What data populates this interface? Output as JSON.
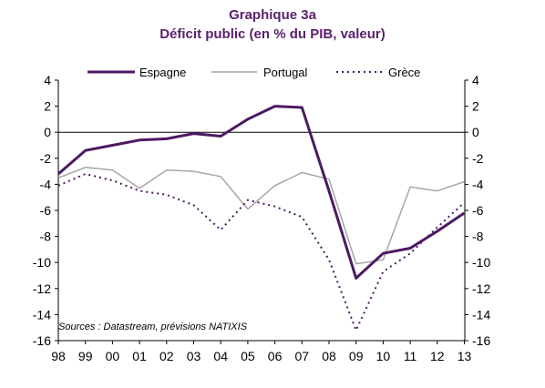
{
  "chart_data": {
    "type": "line",
    "title": "Graphique 3a",
    "subtitle": "Déficit public (en % du PIB, valeur)",
    "source": "Sources : Datastream,  prévisions NATIXIS",
    "x": [
      "98",
      "99",
      "00",
      "01",
      "02",
      "03",
      "04",
      "05",
      "06",
      "07",
      "08",
      "09",
      "10",
      "11",
      "12",
      "13"
    ],
    "ylim": [
      -16,
      4
    ],
    "yticks": [
      "4",
      "2",
      "0",
      "-2",
      "-4",
      "-6",
      "-8",
      "-10",
      "-12",
      "-14",
      "-16"
    ],
    "legend_position": "top",
    "series": [
      {
        "name": "Espagne",
        "color": "#4b1a63",
        "style": "solid-thick",
        "values": [
          -3.2,
          -1.4,
          -1.0,
          -0.6,
          -0.5,
          -0.1,
          -0.3,
          1.0,
          2.0,
          1.9,
          -4.5,
          -11.2,
          -9.3,
          -8.9,
          -7.6,
          -6.2
        ]
      },
      {
        "name": "Portugal",
        "color": "#a6a6a6",
        "style": "solid-thin",
        "values": [
          -3.5,
          -2.7,
          -2.9,
          -4.3,
          -2.9,
          -3.0,
          -3.4,
          -5.9,
          -4.1,
          -3.1,
          -3.6,
          -10.1,
          -9.8,
          -4.2,
          -4.5,
          -3.8
        ]
      },
      {
        "name": "Grèce",
        "color": "#4b1a63",
        "style": "dotted",
        "values": [
          -4.1,
          -3.2,
          -3.7,
          -4.5,
          -4.8,
          -5.6,
          -7.5,
          -5.2,
          -5.7,
          -6.5,
          -9.8,
          -15.2,
          -10.7,
          -9.3,
          -7.3,
          -5.4
        ]
      }
    ]
  }
}
